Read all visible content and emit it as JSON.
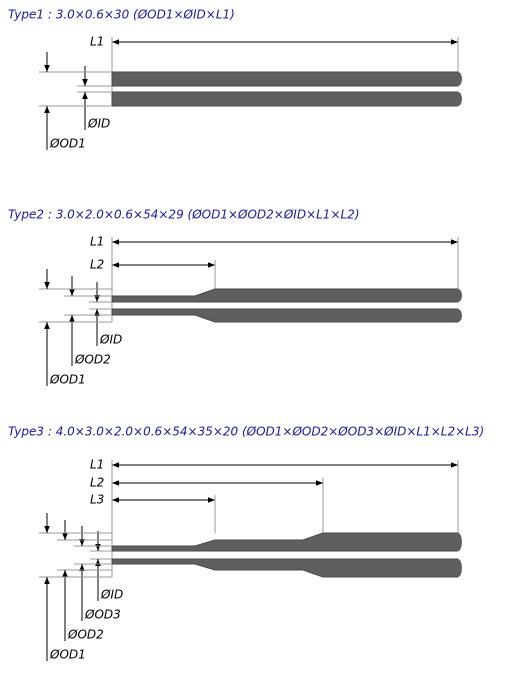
{
  "diagrams": [
    {
      "title": "Type1 : 3.0×0.6×30 (ØOD1×ØID×L1)",
      "lengths": [
        "L1"
      ],
      "diameters": [
        "ØID",
        "ØOD1"
      ]
    },
    {
      "title": "Type2 : 3.0×2.0×0.6×54×29 (ØOD1×ØOD2×ØID×L1×L2)",
      "lengths": [
        "L1",
        "L2"
      ],
      "diameters": [
        "ØID",
        "ØOD2",
        "ØOD1"
      ]
    },
    {
      "title": "Type3 : 4.0×3.0×2.0×0.6×54×35×20 (ØOD1×ØOD2×ØOD3×ØID×L1×L2×L3)",
      "lengths": [
        "L1",
        "L2",
        "L3"
      ],
      "diameters": [
        "ØID",
        "ØOD3",
        "ØOD2",
        "ØOD1"
      ]
    }
  ]
}
